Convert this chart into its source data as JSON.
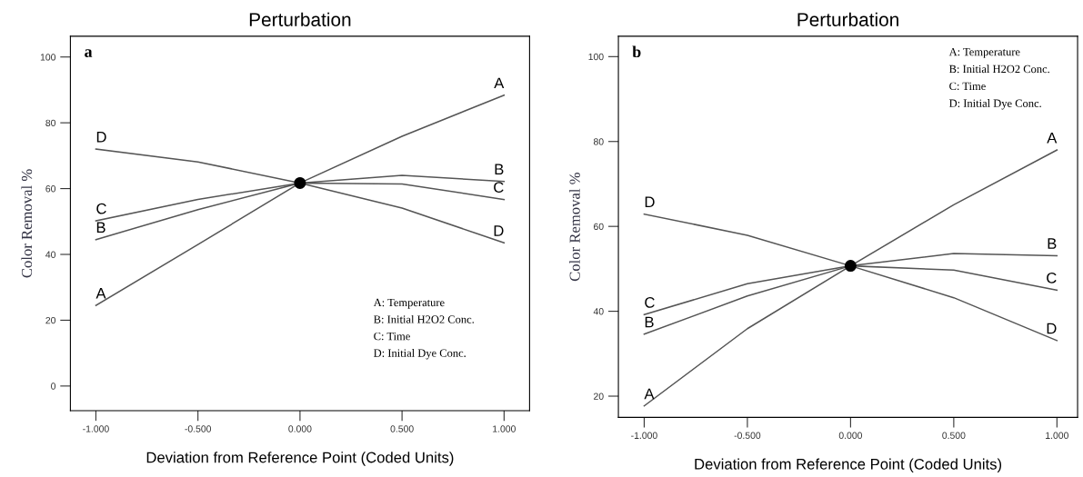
{
  "chart_data": [
    {
      "type": "line",
      "title": "Perturbation",
      "xlabel": "Deviation from Reference Point (Coded Units)",
      "ylabel": "Color Removal %",
      "x": [
        -1,
        -0.5,
        0,
        0.5,
        1
      ],
      "series": [
        {
          "name": "A",
          "color": "#555555",
          "values": [
            24.5,
            43.0,
            61.7,
            75.9,
            88.4
          ]
        },
        {
          "name": "B",
          "color": "#555555",
          "values": [
            44.5,
            53.6,
            61.7,
            64.0,
            62.2
          ]
        },
        {
          "name": "C",
          "color": "#555555",
          "values": [
            50.2,
            56.7,
            61.7,
            61.4,
            56.7
          ]
        },
        {
          "name": "D",
          "color": "#555555",
          "values": [
            72.0,
            68.1,
            61.7,
            54.1,
            43.5
          ]
        },
        {
          "type": "scatter",
          "color": "#000000",
          "marker": "circle",
          "x": [
            0
          ],
          "values": [
            61.7
          ]
        }
      ],
      "xlim": [
        -1.125,
        1.125
      ],
      "ylim": [
        -7.5,
        106.3
      ],
      "xticks": [
        {
          "value": -1,
          "label": "-1.000"
        },
        {
          "value": -0.5,
          "label": "-0.500"
        },
        {
          "value": 0,
          "label": "0.000"
        },
        {
          "value": 0.5,
          "label": "0.500"
        },
        {
          "value": 1,
          "label": "1.000"
        }
      ],
      "yticks": [
        0,
        20,
        40,
        60,
        80,
        100
      ],
      "legend": false,
      "grid": false,
      "annotations": [
        "a",
        "A: Temperature",
        "B: Initial H2O2 Conc.",
        "C: Time",
        "D: Initial Dye Conc."
      ]
    },
    {
      "type": "line",
      "title": "Perturbation",
      "xlabel": "Deviation from Reference Point (Coded Units)",
      "ylabel": "Color Removal %",
      "x": [
        -1,
        -0.5,
        0,
        0.5,
        1
      ],
      "series": [
        {
          "name": "A",
          "color": "#555555",
          "values": [
            17.7,
            35.9,
            50.7,
            65.1,
            78.0
          ]
        },
        {
          "name": "B",
          "color": "#555555",
          "values": [
            34.6,
            43.6,
            50.7,
            53.6,
            53.1
          ]
        },
        {
          "name": "C",
          "color": "#555555",
          "values": [
            39.2,
            46.5,
            50.7,
            49.7,
            45.0
          ]
        },
        {
          "name": "D",
          "color": "#555555",
          "values": [
            62.9,
            57.9,
            50.7,
            43.2,
            33.1
          ]
        },
        {
          "type": "scatter",
          "color": "#000000",
          "marker": "circle",
          "x": [
            0
          ],
          "values": [
            50.7
          ]
        }
      ],
      "xlim": [
        -1.125,
        1.1
      ],
      "ylim": [
        15,
        104.8
      ],
      "xticks": [
        {
          "value": -1,
          "label": "-1.000"
        },
        {
          "value": -0.5,
          "label": "-0.500"
        },
        {
          "value": 0,
          "label": "0.000"
        },
        {
          "value": 0.5,
          "label": "0.500"
        },
        {
          "value": 1,
          "label": "1.000"
        }
      ],
      "yticks": [
        20,
        40,
        60,
        80,
        100
      ],
      "legend": false,
      "grid": false,
      "annotations": [
        "b",
        "A: Temperature",
        "B: Initial H2O2 Conc.",
        "C: Time",
        "D: Initial Dye Conc."
      ]
    }
  ]
}
